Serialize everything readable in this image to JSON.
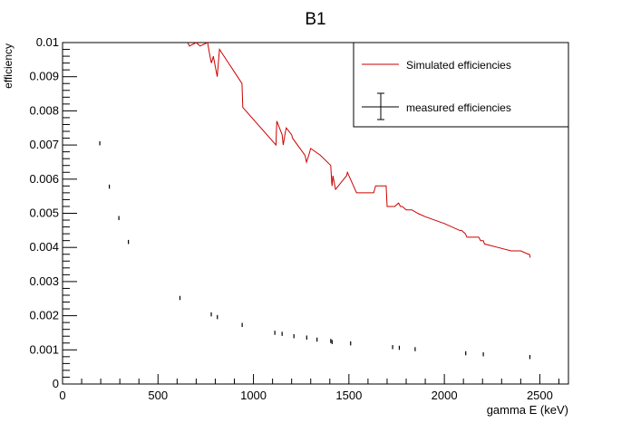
{
  "chart_data": {
    "type": "line",
    "title": "B1",
    "xlabel": "gamma E (keV)",
    "ylabel": "efficiency",
    "xlim": [
      0,
      2650
    ],
    "ylim": [
      0,
      0.01
    ],
    "x_ticks": [
      {
        "value": 0,
        "label": "0"
      },
      {
        "value": 500,
        "label": "500"
      },
      {
        "value": 1000,
        "label": "1000"
      },
      {
        "value": 1500,
        "label": "1500"
      },
      {
        "value": 2000,
        "label": "2000"
      },
      {
        "value": 2500,
        "label": "2500"
      }
    ],
    "y_ticks": [
      {
        "value": 0,
        "label": "0"
      },
      {
        "value": 0.001,
        "label": "0.001"
      },
      {
        "value": 0.002,
        "label": "0.002"
      },
      {
        "value": 0.003,
        "label": "0.003"
      },
      {
        "value": 0.004,
        "label": "0.004"
      },
      {
        "value": 0.005,
        "label": "0.005"
      },
      {
        "value": 0.006,
        "label": "0.006"
      },
      {
        "value": 0.007,
        "label": "0.007"
      },
      {
        "value": 0.008,
        "label": "0.008"
      },
      {
        "value": 0.009,
        "label": "0.009"
      },
      {
        "value": 0.01,
        "label": "0.01"
      }
    ],
    "grid": false,
    "legend_position": "top-right",
    "series": [
      {
        "name": "Simulated efficiencies",
        "kind": "line",
        "color": "#cc0000",
        "x": [
          655,
          665,
          700,
          720,
          760,
          772,
          780,
          790,
          810,
          822,
          940,
          944,
          1118,
          1122,
          1150,
          1156,
          1168,
          1172,
          1200,
          1205,
          1270,
          1278,
          1290,
          1300,
          1350,
          1405,
          1410,
          1412,
          1416,
          1430,
          1488,
          1492,
          1540,
          1560,
          1630,
          1640,
          1695,
          1700,
          1740,
          1760,
          1770,
          1780,
          1800,
          1830,
          1860,
          1900,
          2000,
          2080,
          2090,
          2110,
          2118,
          2180,
          2190,
          2204,
          2210,
          2280,
          2350,
          2400,
          2440,
          2446,
          2450
        ],
        "y": [
          0.01,
          0.0099,
          0.01,
          0.0099,
          0.01,
          0.0096,
          0.0094,
          0.0096,
          0.009,
          0.0098,
          0.0088,
          0.0081,
          0.007,
          0.0077,
          0.0073,
          0.007,
          0.0074,
          0.0075,
          0.0073,
          0.0072,
          0.0067,
          0.0065,
          0.0067,
          0.0069,
          0.0067,
          0.0064,
          0.0059,
          0.0058,
          0.0061,
          0.0057,
          0.0061,
          0.0062,
          0.0056,
          0.0056,
          0.0056,
          0.0058,
          0.0058,
          0.0052,
          0.0052,
          0.0053,
          0.0052,
          0.0052,
          0.0051,
          0.0051,
          0.005,
          0.0049,
          0.0047,
          0.0045,
          0.0045,
          0.0044,
          0.0043,
          0.0043,
          0.0042,
          0.0042,
          0.0041,
          0.004,
          0.0039,
          0.0039,
          0.0038,
          0.0038,
          0.0037
        ]
      },
      {
        "name": "measured efficiencies",
        "kind": "errorbar",
        "color": "#000000",
        "x": [
          195,
          245,
          295,
          345,
          615,
          779,
          811,
          941,
          1112,
          1150,
          1212,
          1279,
          1333,
          1405,
          1412,
          1509,
          1729,
          1764,
          1847,
          2112,
          2204,
          2448
        ],
        "y": [
          0.00705,
          0.00578,
          0.00486,
          0.00416,
          0.00252,
          0.00204,
          0.00196,
          0.00173,
          0.0015,
          0.00147,
          0.0014,
          0.00136,
          0.0013,
          0.00126,
          0.00123,
          0.00119,
          0.00108,
          0.00106,
          0.00102,
          0.0009,
          0.00087,
          0.00079
        ],
        "yerr": [
          6e-05,
          6e-05,
          6e-05,
          6e-05,
          6e-05,
          6e-05,
          6e-05,
          6e-05,
          6e-05,
          6e-05,
          6e-05,
          6e-05,
          6e-05,
          6e-05,
          6e-05,
          6e-05,
          6e-05,
          6e-05,
          6e-05,
          6e-05,
          6e-05,
          6e-05
        ]
      }
    ]
  }
}
